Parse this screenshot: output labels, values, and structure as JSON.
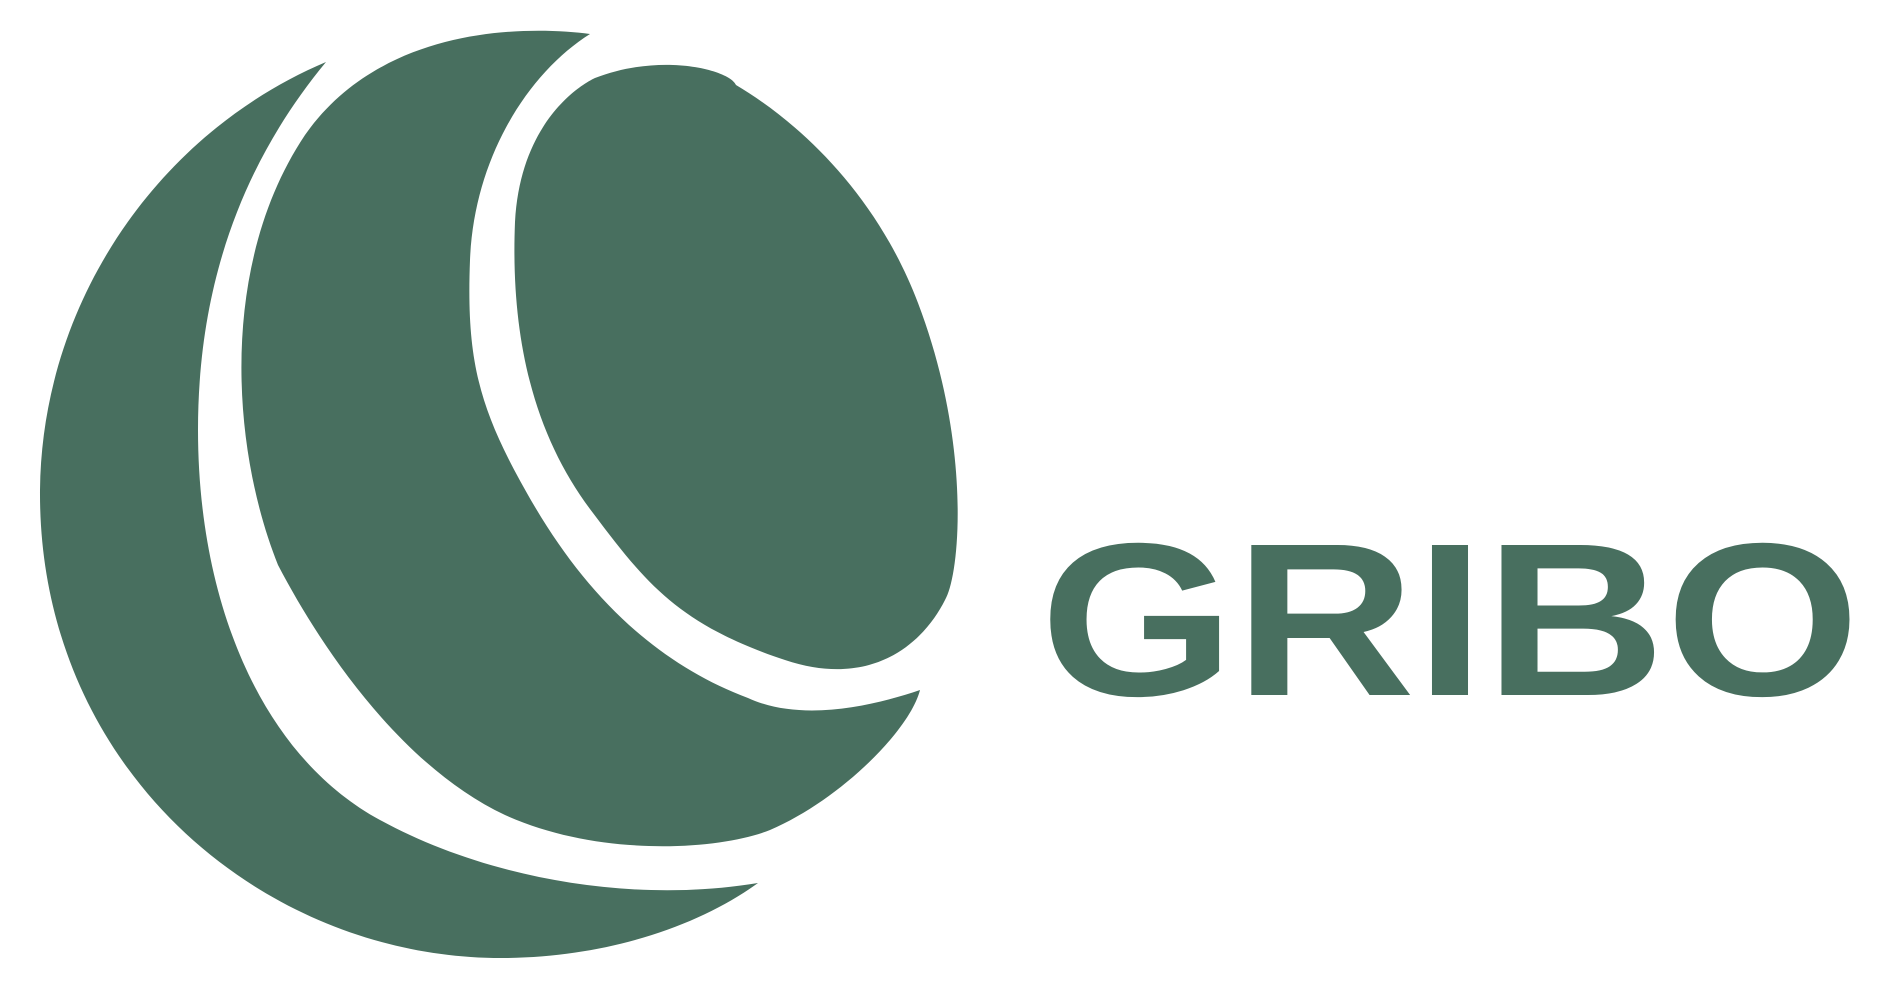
{
  "brand": {
    "name": "GRIBO",
    "color": "#486f5f",
    "background": "#ffffff"
  }
}
